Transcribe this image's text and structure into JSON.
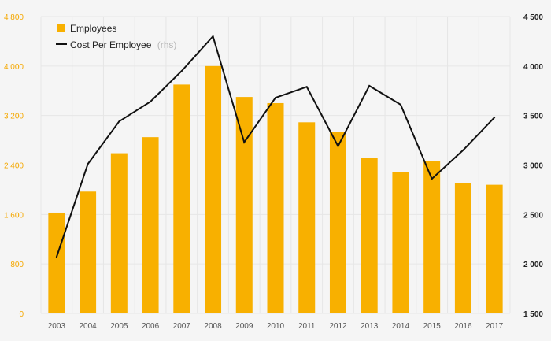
{
  "colors": {
    "bar": "#f8b000",
    "line": "#111111",
    "left_axis": "#f5a800",
    "right_axis": "#222222",
    "grid": "#e6e6e6",
    "background": "#f5f5f5"
  },
  "legend": {
    "employees": "Employees",
    "cost_per_employee": "Cost Per Employee",
    "rhs": "(rhs)",
    "placement": "top-left"
  },
  "chart_data": {
    "type": "bar",
    "categories": [
      "2003",
      "2004",
      "2005",
      "2006",
      "2007",
      "2008",
      "2009",
      "2010",
      "2011",
      "2012",
      "2013",
      "2014",
      "2015",
      "2016",
      "2017"
    ],
    "series": [
      {
        "name": "Employees",
        "type": "bar",
        "axis": "left",
        "values": [
          1630,
          1970,
          2590,
          2850,
          3700,
          4000,
          3500,
          3400,
          3090,
          2940,
          2510,
          2280,
          2460,
          2110,
          2080
        ]
      },
      {
        "name": "Cost Per Employee",
        "type": "line",
        "axis": "right",
        "values": [
          2070,
          3010,
          3440,
          3640,
          3950,
          4300,
          3230,
          3680,
          3790,
          3190,
          3800,
          3610,
          2860,
          3150,
          3480
        ]
      }
    ],
    "y_left": {
      "ylim": [
        0,
        4800
      ],
      "ticks": [
        0,
        800,
        1600,
        2400,
        3200,
        4000,
        4800
      ],
      "tick_labels": [
        "0",
        "800",
        "1 600",
        "2 400",
        "3 200",
        "4 000",
        "4 800"
      ]
    },
    "y_right": {
      "ylim": [
        1500,
        4500
      ],
      "ticks": [
        1500,
        2000,
        2500,
        3000,
        3500,
        4000,
        4500
      ],
      "tick_labels": [
        "1 500",
        "2 000",
        "2 500",
        "3 000",
        "3 500",
        "4 000",
        "4 500"
      ]
    },
    "grid": true
  }
}
